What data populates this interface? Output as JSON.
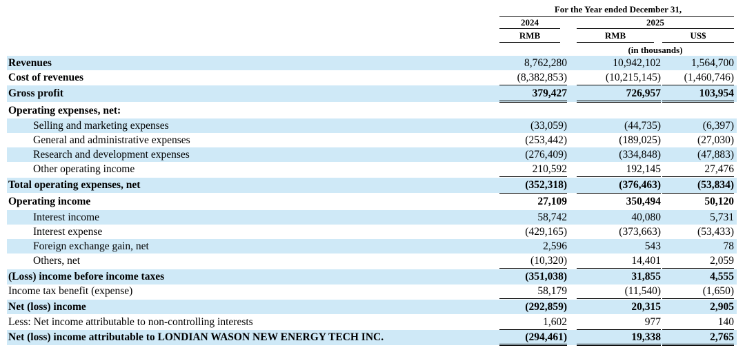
{
  "header": {
    "period": "For the Year ended December 31,",
    "year_2024": "2024",
    "year_2025": "2025",
    "cur_2024_rmb": "RMB",
    "cur_2025_rmb": "RMB",
    "cur_2025_usd": "US$",
    "units": "(in thousands)"
  },
  "rows": [
    {
      "label": "Revenues",
      "style": "bold",
      "shade": true,
      "v2024": "8,762,280",
      "v2025": "10,942,102",
      "vusd": "1,564,700",
      "line": "",
      "numbold": false
    },
    {
      "label": "Cost of revenues",
      "style": "bold",
      "shade": false,
      "v2024": "(8,382,853)",
      "v2025": "(10,215,145)",
      "vusd": "(1,460,746)",
      "line": "single",
      "numbold": false
    },
    {
      "label": "Gross profit",
      "style": "bold",
      "shade": true,
      "v2024": "379,427",
      "v2025": "726,957",
      "vusd": "103,954",
      "line": "double",
      "numbold": true
    },
    {
      "label": "Operating expenses, net:",
      "style": "bold",
      "shade": false,
      "v2024": "",
      "v2025": "",
      "vusd": "",
      "line": "",
      "numbold": false
    },
    {
      "label": "Selling and marketing expenses",
      "style": "indent",
      "shade": true,
      "v2024": "(33,059)",
      "v2025": "(44,735)",
      "vusd": "(6,397)",
      "line": "",
      "numbold": false
    },
    {
      "label": "General and administrative expenses",
      "style": "indent",
      "shade": false,
      "v2024": "(253,442)",
      "v2025": "(189,025)",
      "vusd": "(27,030)",
      "line": "",
      "numbold": false
    },
    {
      "label": "Research and development expenses",
      "style": "indent",
      "shade": true,
      "v2024": "(276,409)",
      "v2025": "(334,848)",
      "vusd": "(47,883)",
      "line": "",
      "numbold": false
    },
    {
      "label": "Other operating income",
      "style": "indent",
      "shade": false,
      "v2024": "210,592",
      "v2025": "192,145",
      "vusd": "27,476",
      "line": "single",
      "numbold": false
    },
    {
      "label": "Total operating expenses, net",
      "style": "bold",
      "shade": true,
      "v2024": "(352,318)",
      "v2025": "(376,463)",
      "vusd": "(53,834)",
      "line": "single",
      "numbold": true
    },
    {
      "label": "Operating income",
      "style": "bold",
      "shade": false,
      "v2024": "27,109",
      "v2025": "350,494",
      "vusd": "50,120",
      "line": "",
      "numbold": true
    },
    {
      "label": "Interest income",
      "style": "indent",
      "shade": true,
      "v2024": "58,742",
      "v2025": "40,080",
      "vusd": "5,731",
      "line": "",
      "numbold": false
    },
    {
      "label": "Interest expense",
      "style": "indent",
      "shade": false,
      "v2024": "(429,165)",
      "v2025": "(373,663)",
      "vusd": "(53,433)",
      "line": "",
      "numbold": false
    },
    {
      "label": "Foreign exchange gain, net",
      "style": "indent",
      "shade": true,
      "v2024": "2,596",
      "v2025": "543",
      "vusd": "78",
      "line": "",
      "numbold": false
    },
    {
      "label": "Others, net",
      "style": "indent",
      "shade": false,
      "v2024": "(10,320)",
      "v2025": "14,401",
      "vusd": "2,059",
      "line": "single",
      "numbold": false
    },
    {
      "label": "(Loss) income before income taxes",
      "style": "bold",
      "shade": true,
      "v2024": "(351,038)",
      "v2025": "31,855",
      "vusd": "4,555",
      "line": "",
      "numbold": true
    },
    {
      "label": "Income tax benefit (expense)",
      "style": "plain",
      "shade": false,
      "v2024": "58,179",
      "v2025": "(11,540)",
      "vusd": "(1,650)",
      "line": "single",
      "numbold": false
    },
    {
      "label": "Net (loss) income",
      "style": "bold",
      "shade": true,
      "v2024": "(292,859)",
      "v2025": "20,315",
      "vusd": "2,905",
      "line": "",
      "numbold": true
    },
    {
      "label": "Less: Net income attributable to non-controlling interests",
      "style": "plain",
      "shade": false,
      "v2024": "1,602",
      "v2025": "977",
      "vusd": "140",
      "line": "single",
      "numbold": false
    },
    {
      "label": "Net (loss) income attributable to LONDIAN WASON NEW ENERGY TECH INC.",
      "style": "bold",
      "shade": true,
      "v2024": "(294,461)",
      "v2025": "19,338",
      "vusd": "2,765",
      "line": "double",
      "numbold": true
    }
  ]
}
